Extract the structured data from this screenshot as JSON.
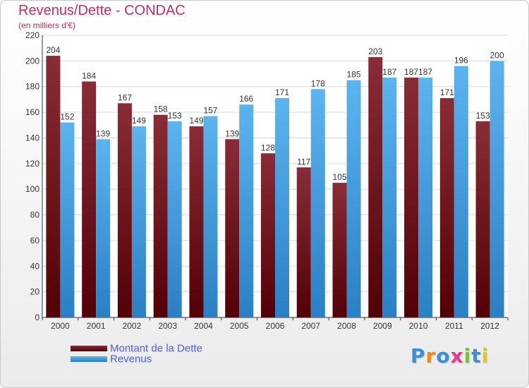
{
  "chart_data": {
    "type": "bar",
    "title": "Revenus/Dette - CONDAC",
    "subtitle": "(en milliers d'€)",
    "categories": [
      "2000",
      "2001",
      "2002",
      "2003",
      "2004",
      "2005",
      "2006",
      "2007",
      "2008",
      "2009",
      "2010",
      "2011",
      "2012"
    ],
    "series": [
      {
        "name": "Montant de la Dette",
        "color": "#7a1f2a",
        "values": [
          204,
          184,
          167,
          158,
          149,
          139,
          128,
          117,
          105,
          203,
          187,
          171,
          153
        ]
      },
      {
        "name": "Revenus",
        "color": "#4aa8e8",
        "values": [
          152,
          139,
          149,
          153,
          157,
          166,
          171,
          178,
          185,
          187,
          187,
          196,
          200
        ]
      }
    ],
    "ylim": [
      0,
      220
    ],
    "yticks": [
      0,
      20,
      40,
      60,
      80,
      100,
      120,
      140,
      160,
      180,
      200,
      220
    ],
    "grid": true,
    "legend": "bottom-left",
    "show_data_labels": true
  },
  "branding": {
    "logo_text": "Proxiti",
    "logo_colors": [
      "#3a8fd8",
      "#f08a1c",
      "#3a8fd8",
      "#e83a8a",
      "#7ac143",
      "#3a8fd8",
      "#f2c500"
    ]
  }
}
